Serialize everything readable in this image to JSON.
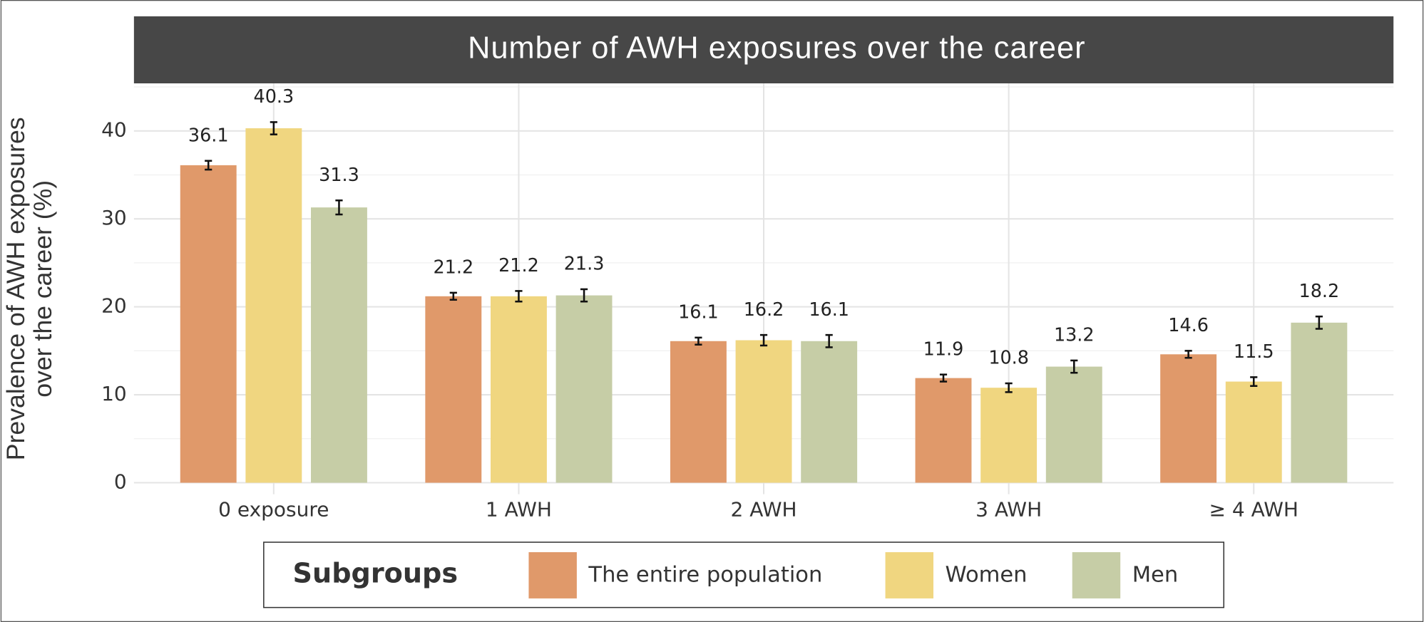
{
  "chart_data": {
    "type": "bar",
    "title": "Number of AWH exposures over the career",
    "y_label": "Prevalence of AWH exposures\nover the career (%)",
    "categories": [
      "0 exposure",
      "1 AWH",
      "2 AWH",
      "3 AWH",
      "≥ 4 AWH"
    ],
    "series": [
      {
        "name": "The entire population",
        "color": "#e0996a",
        "values": [
          36.1,
          21.2,
          16.1,
          11.9,
          14.6
        ],
        "errors": [
          0.5,
          0.4,
          0.4,
          0.4,
          0.4
        ]
      },
      {
        "name": "Women",
        "color": "#f0d680",
        "values": [
          40.3,
          21.2,
          16.2,
          10.8,
          11.5
        ],
        "errors": [
          0.7,
          0.6,
          0.6,
          0.5,
          0.5
        ]
      },
      {
        "name": "Men",
        "color": "#c6cda6",
        "values": [
          31.3,
          21.3,
          16.1,
          13.2,
          18.2
        ],
        "errors": [
          0.8,
          0.7,
          0.7,
          0.7,
          0.7
        ]
      }
    ],
    "legend_title": "Subgroups",
    "legend": "bottom",
    "ylim": [
      -1.3,
      45.4
    ],
    "yticks": [
      0,
      10,
      20,
      30,
      40
    ],
    "minor_yticks": [
      5,
      15,
      25,
      35,
      45
    ],
    "grid": true
  }
}
